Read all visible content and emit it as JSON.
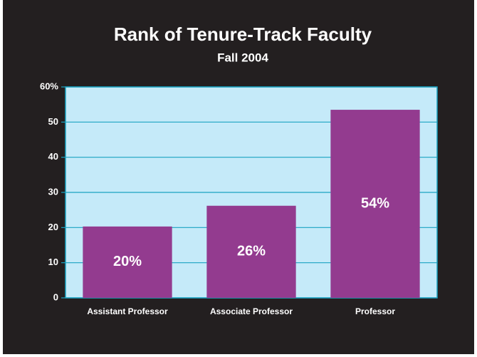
{
  "chart_data": {
    "type": "bar",
    "title": "Rank of Tenure-Track Faculty",
    "subtitle": "Fall 2004",
    "categories": [
      "Assistant Professor",
      "Associate Professor",
      "Professor"
    ],
    "values": [
      20.3,
      26.2,
      53.5
    ],
    "value_labels": [
      "20%",
      "26%",
      "54%"
    ],
    "color": "#933b8f",
    "ylim": [
      0,
      60
    ],
    "yticks": [
      0,
      10,
      20,
      30,
      40,
      50,
      {
        "value": 60,
        "label": "60%"
      }
    ],
    "grid": true
  }
}
